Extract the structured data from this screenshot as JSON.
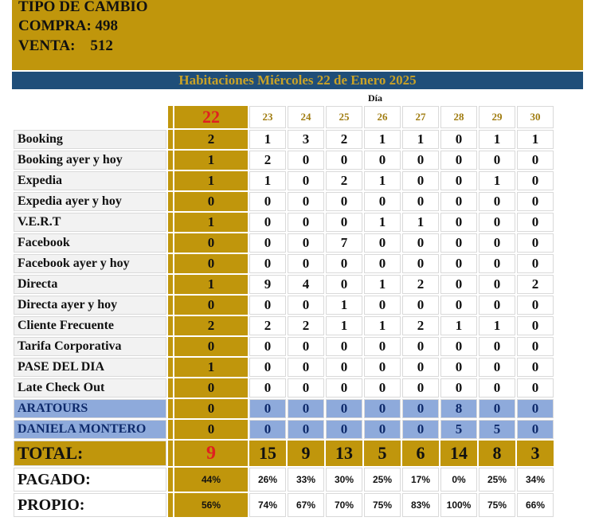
{
  "header": {
    "line1": "TIPO DE CAMBIO",
    "line2": "COMPRA: 498",
    "line3": "VENTA:    512"
  },
  "title": "Habitaciones Miércoles 22 de Enero 2025",
  "dia_label": "Día",
  "days": [
    "22",
    "23",
    "24",
    "25",
    "26",
    "27",
    "28",
    "29",
    "30"
  ],
  "rows": [
    {
      "label": "Booking",
      "values": [
        "2",
        "1",
        "3",
        "2",
        "1",
        "1",
        "0",
        "1",
        "1"
      ]
    },
    {
      "label": "Booking ayer y hoy",
      "values": [
        "1",
        "2",
        "0",
        "0",
        "0",
        "0",
        "0",
        "0",
        "0"
      ]
    },
    {
      "label": "Expedia",
      "values": [
        "1",
        "1",
        "0",
        "2",
        "1",
        "0",
        "0",
        "1",
        "0"
      ]
    },
    {
      "label": "Expedia ayer y hoy",
      "values": [
        "0",
        "0",
        "0",
        "0",
        "0",
        "0",
        "0",
        "0",
        "0"
      ]
    },
    {
      "label": "V.E.R.T",
      "values": [
        "1",
        "0",
        "0",
        "0",
        "1",
        "1",
        "0",
        "0",
        "0"
      ]
    },
    {
      "label": "Facebook",
      "values": [
        "0",
        "0",
        "0",
        "7",
        "0",
        "0",
        "0",
        "0",
        "0"
      ]
    },
    {
      "label": "Facebook ayer y hoy",
      "values": [
        "0",
        "0",
        "0",
        "0",
        "0",
        "0",
        "0",
        "0",
        "0"
      ]
    },
    {
      "label": "Directa",
      "values": [
        "1",
        "9",
        "4",
        "0",
        "1",
        "2",
        "0",
        "0",
        "2"
      ]
    },
    {
      "label": "Directa ayer y hoy",
      "values": [
        "0",
        "0",
        "0",
        "1",
        "0",
        "0",
        "0",
        "0",
        "0"
      ]
    },
    {
      "label": "Cliente Frecuente",
      "values": [
        "2",
        "2",
        "2",
        "1",
        "1",
        "2",
        "1",
        "1",
        "0"
      ]
    },
    {
      "label": "Tarifa Corporativa",
      "values": [
        "0",
        "0",
        "0",
        "0",
        "0",
        "0",
        "0",
        "0",
        "0"
      ]
    },
    {
      "label": "PASE DEL DIA",
      "values": [
        "1",
        "0",
        "0",
        "0",
        "0",
        "0",
        "0",
        "0",
        "0"
      ]
    },
    {
      "label": "Late Check Out",
      "values": [
        "0",
        "0",
        "0",
        "0",
        "0",
        "0",
        "0",
        "0",
        "0"
      ]
    },
    {
      "label": "ARATOURS",
      "values": [
        "0",
        "0",
        "0",
        "0",
        "0",
        "0",
        "8",
        "0",
        "0"
      ],
      "highlight": true
    },
    {
      "label": "DANIELA MONTERO",
      "values": [
        "0",
        "0",
        "0",
        "0",
        "0",
        "0",
        "5",
        "5",
        "0"
      ],
      "highlight": true
    }
  ],
  "total": {
    "label": "TOTAL:",
    "values": [
      "9",
      "15",
      "9",
      "13",
      "5",
      "6",
      "14",
      "8",
      "3"
    ]
  },
  "pagado": {
    "label": "PAGADO:",
    "values": [
      "44%",
      "26%",
      "33%",
      "30%",
      "25%",
      "17%",
      "0%",
      "25%",
      "34%"
    ]
  },
  "propio": {
    "label": "PROPIO:",
    "values": [
      "56%",
      "74%",
      "67%",
      "70%",
      "75%",
      "83%",
      "100%",
      "75%",
      "66%"
    ]
  },
  "colors": {
    "gold": "#c0960c",
    "navy": "#1f4e79",
    "highlight_blue": "#8eaadb",
    "today_red": "#e02020"
  }
}
